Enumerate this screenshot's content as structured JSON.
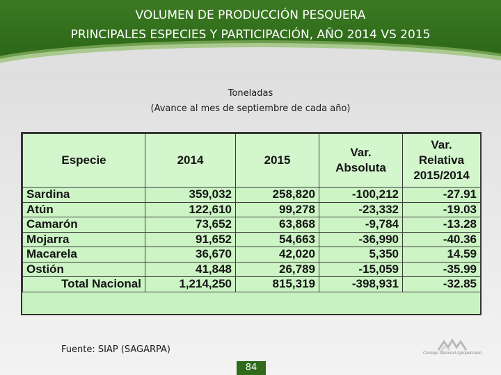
{
  "header": {
    "title_line1": "VOLUMEN DE PRODUCCIÓN PESQUERA",
    "title_line2": "PRINCIPALES ESPECIES Y PARTICIPACIÓN, AÑO 2014 VS 2015"
  },
  "subtitle": {
    "line1": "Toneladas",
    "line2": "(Avance al mes de septiembre de cada año)"
  },
  "table": {
    "headers": {
      "especie": "Especie",
      "y2014": "2014",
      "y2015": "2015",
      "var_abs_1": "Var.",
      "var_abs_2": "Absoluta",
      "var_rel_1": "Var.",
      "var_rel_2": "Relativa",
      "var_rel_3": "2015/2014"
    },
    "rows": [
      {
        "especie": "Sardina",
        "y2014": "359,032",
        "y2015": "258,820",
        "var_abs": "-100,212",
        "var_rel": "-27.91"
      },
      {
        "especie": "Atún",
        "y2014": "122,610",
        "y2015": "99,278",
        "var_abs": "-23,332",
        "var_rel": "-19.03"
      },
      {
        "especie": "Camarón",
        "y2014": "73,652",
        "y2015": "63,868",
        "var_abs": "-9,784",
        "var_rel": "-13.28"
      },
      {
        "especie": "Mojarra",
        "y2014": "91,652",
        "y2015": "54,663",
        "var_abs": "-36,990",
        "var_rel": "-40.36"
      },
      {
        "especie": "Macarela",
        "y2014": "36,670",
        "y2015": "42,020",
        "var_abs": "5,350",
        "var_rel": "14.59"
      },
      {
        "especie": "Ostión",
        "y2014": "41,848",
        "y2015": "26,789",
        "var_abs": "-15,059",
        "var_rel": "-35.99"
      }
    ],
    "total": {
      "especie": "Total Nacional",
      "y2014": "1,214,250",
      "y2015": "815,319",
      "var_abs": "-398,931",
      "var_rel": "-32.85"
    }
  },
  "footer": {
    "source": "Fuente: SIAP (SAGARPA)",
    "page_number": "84",
    "logo_caption": "Consejo Nacional Agropecuario"
  },
  "colors": {
    "header_green": "#2f6b1a",
    "table_fill": "#ccf4c4"
  }
}
